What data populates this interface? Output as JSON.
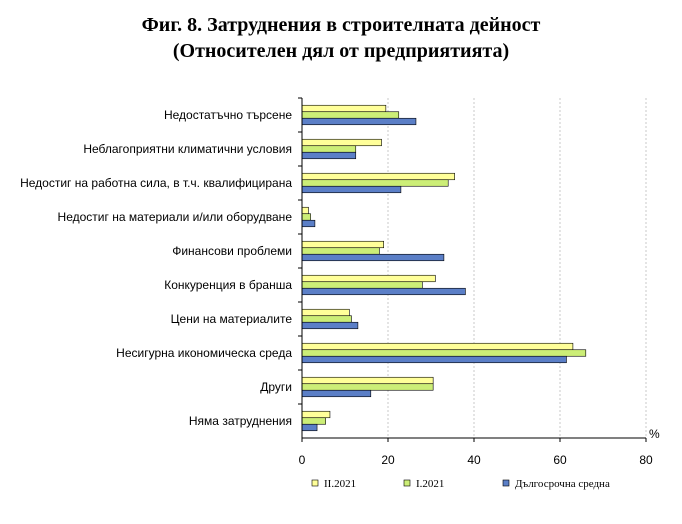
{
  "chart_data": {
    "type": "bar",
    "orientation": "horizontal",
    "title": "Фиг. 8. Затруднения в строителната дейност",
    "subtitle": "(Относителен дял от предприятията)",
    "unit": "%",
    "categories": [
      "Недостатъчно търсене",
      "Неблагоприятни климатични условия",
      "Недостиг на работна сила, в т.ч. квалифицирана",
      "Недостиг на материали и/или оборудване",
      "Финансови проблеми",
      "Конкуренция в бранша",
      "Цени на материалите",
      "Несигурна икономическа среда",
      "Други",
      "Няма затруднения"
    ],
    "series": [
      {
        "name": "II.2021",
        "color": "#FFFF99",
        "values": [
          19.5,
          18.5,
          35.5,
          1.5,
          19.0,
          31.0,
          11.0,
          63.0,
          30.5,
          6.5
        ]
      },
      {
        "name": "I.2021",
        "color": "#CCEE77",
        "values": [
          22.5,
          12.5,
          34.0,
          2.0,
          18.0,
          28.0,
          11.5,
          66.0,
          30.5,
          5.5
        ]
      },
      {
        "name": "Дългосрочна средна",
        "color": "#5B7FC7",
        "values": [
          26.5,
          12.5,
          23.0,
          3.0,
          33.0,
          38.0,
          13.0,
          61.5,
          16.0,
          3.5
        ]
      }
    ],
    "xlim": [
      0,
      80
    ],
    "xticks": [
      "0",
      "20",
      "40",
      "60",
      "80"
    ],
    "grid": true,
    "legend_position": "bottom"
  }
}
